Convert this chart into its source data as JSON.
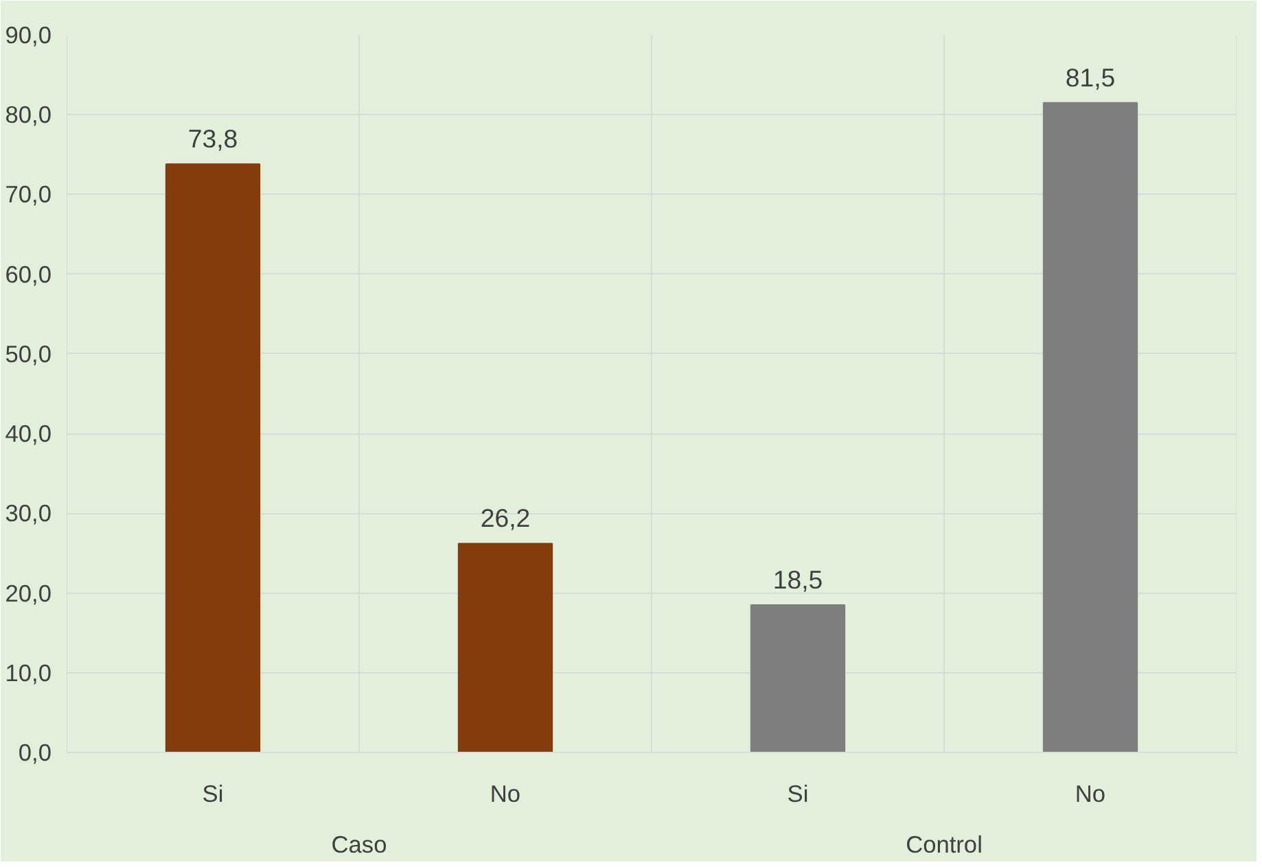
{
  "chart_data": {
    "type": "bar",
    "categories": [
      "Si",
      "No",
      "Si",
      "No"
    ],
    "values": [
      73.8,
      26.2,
      18.5,
      81.5
    ],
    "colors": [
      "#843c0c",
      "#843c0c",
      "#7f7f7f",
      "#7f7f7f"
    ],
    "value_labels": [
      "73,8",
      "26,2",
      "18,5",
      "81,5"
    ],
    "ylim": [
      0,
      90
    ],
    "yticks": [
      {
        "value": 0,
        "label": "0,0"
      },
      {
        "value": 10,
        "label": "10,0"
      },
      {
        "value": 20,
        "label": "20,0"
      },
      {
        "value": 30,
        "label": "30,0"
      },
      {
        "value": 40,
        "label": "40,0"
      },
      {
        "value": 50,
        "label": "50,0"
      },
      {
        "value": 60,
        "label": "60,0"
      },
      {
        "value": 70,
        "label": "70,0"
      },
      {
        "value": 80,
        "label": "80,0"
      },
      {
        "value": 90,
        "label": "90,0"
      }
    ],
    "annotations": [
      "Caso",
      "Control"
    ],
    "grid": true
  }
}
